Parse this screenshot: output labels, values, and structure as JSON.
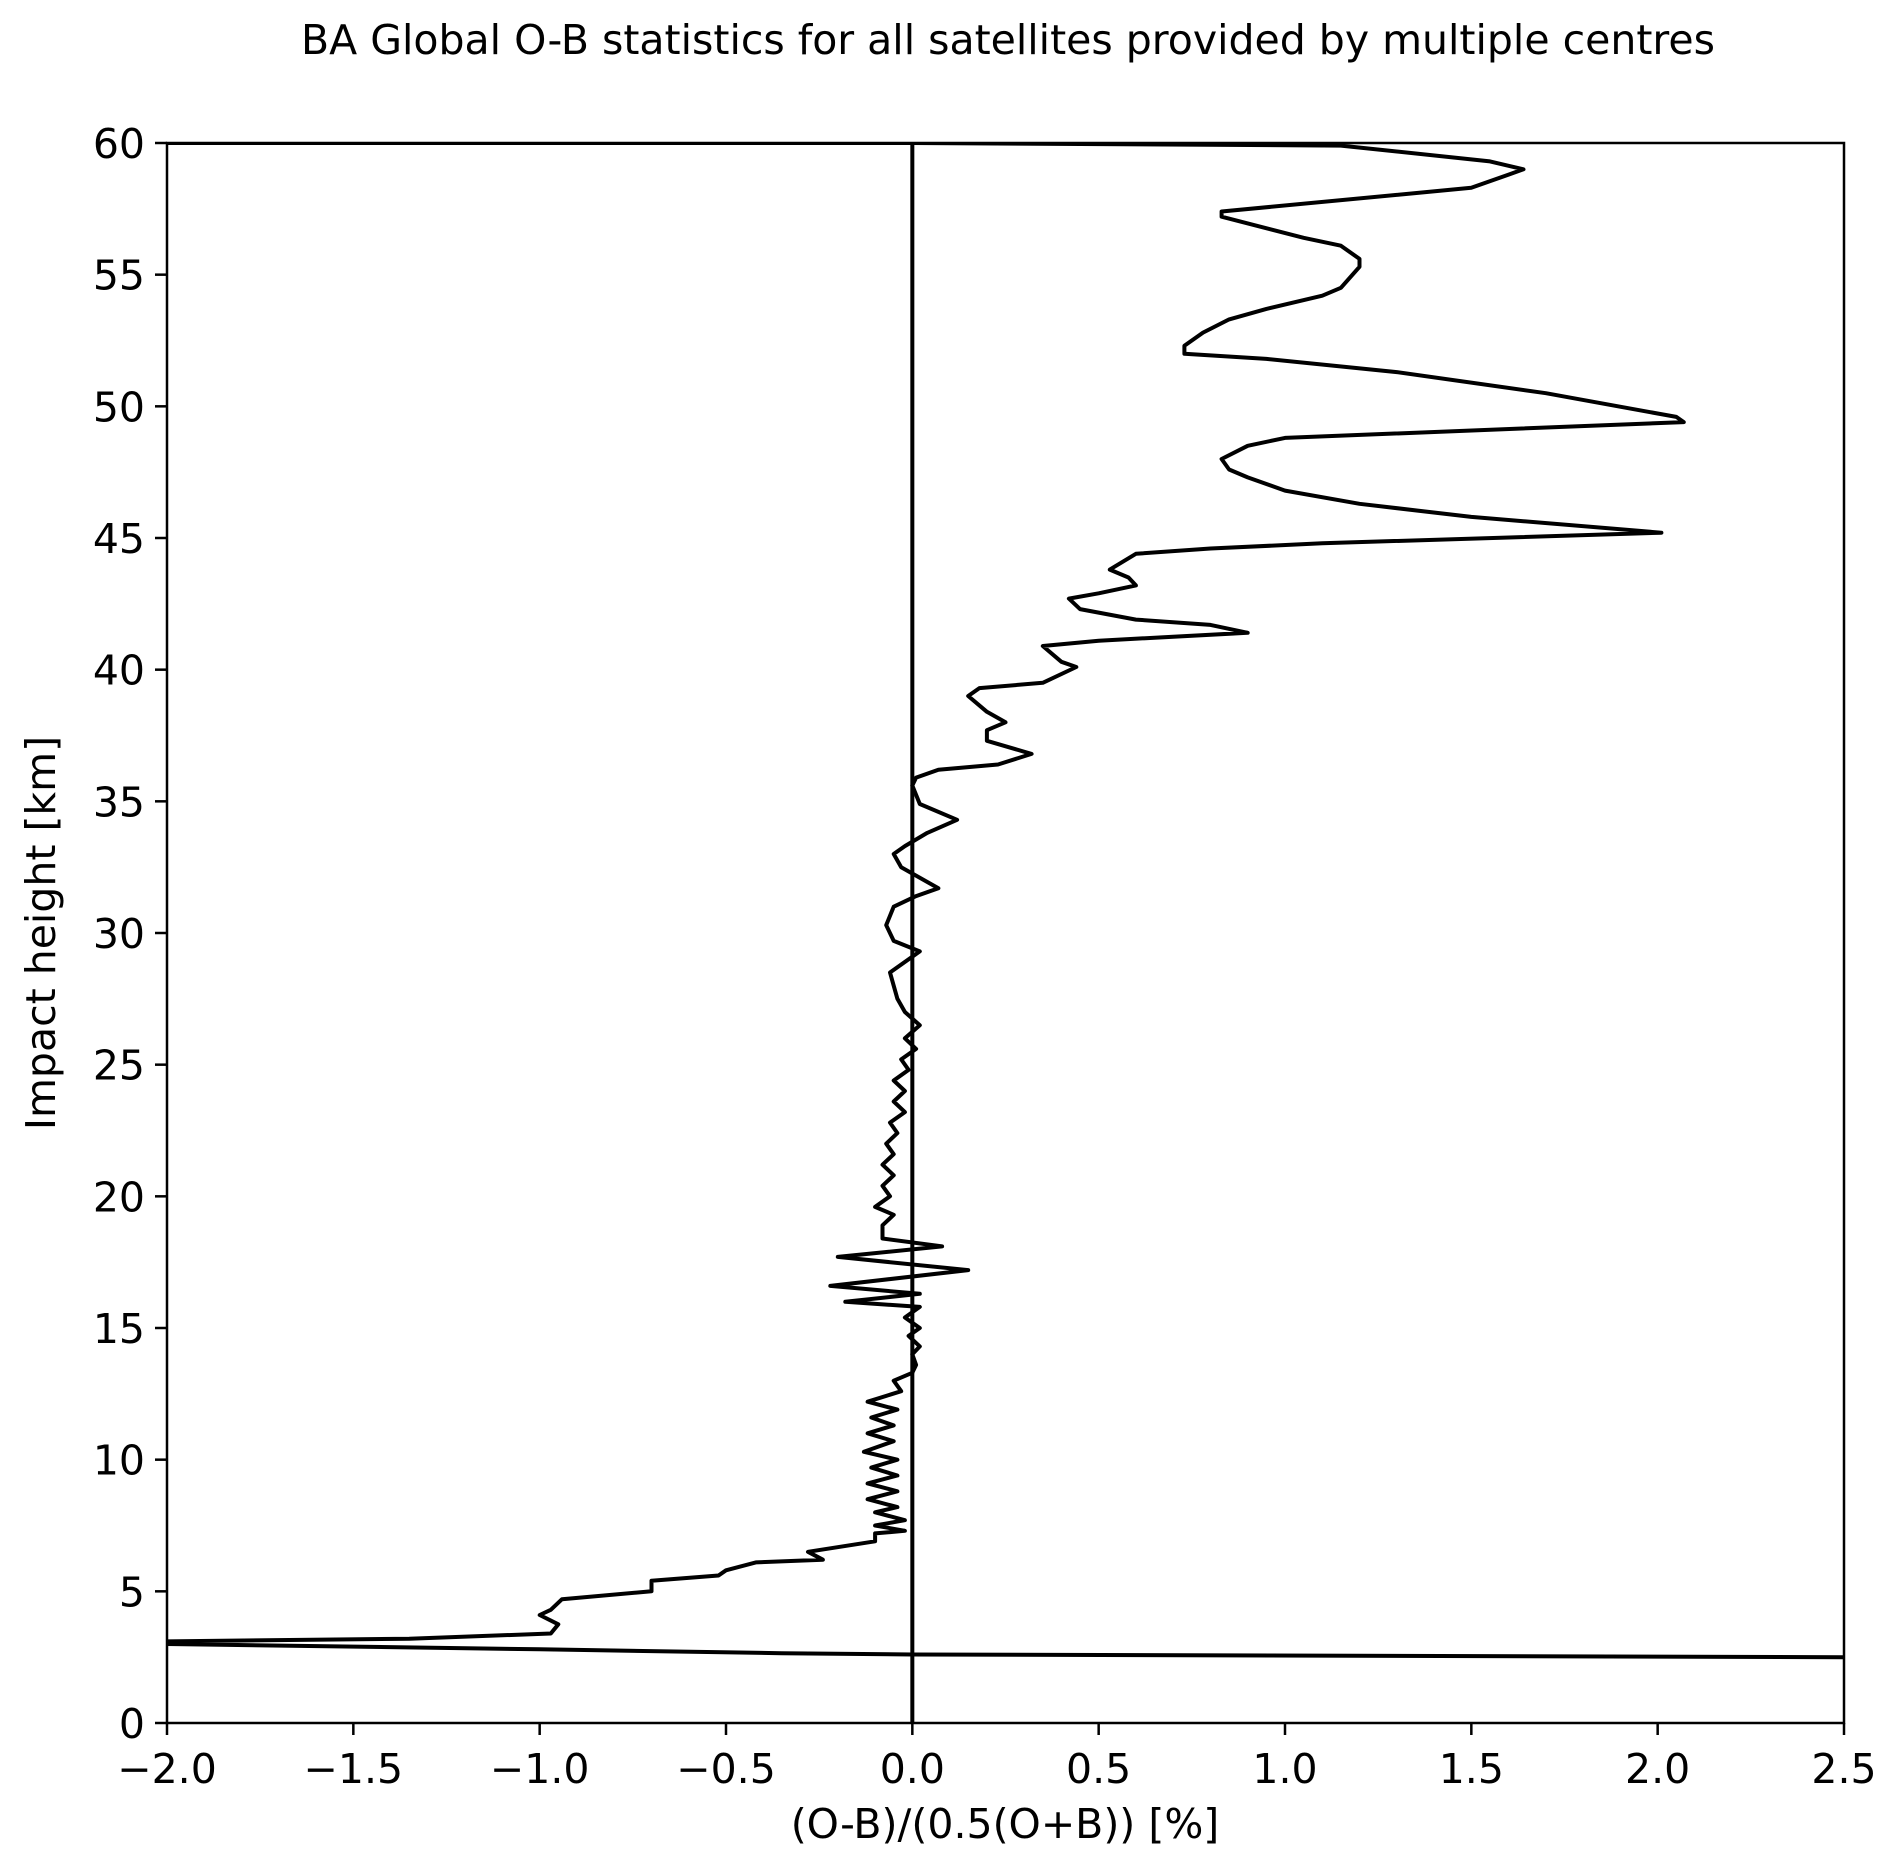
{
  "chart_data": {
    "type": "line",
    "title": "BA Global O-B statistics for all satellites provided by multiple centres",
    "xlabel": "(O-B)/(0.5(O+B)) [%]",
    "ylabel": "Impact height [km]",
    "xlim": [
      -2.0,
      2.5
    ],
    "ylim": [
      0,
      60
    ],
    "xticks": [
      -2.0,
      -1.5,
      -1.0,
      -0.5,
      0.0,
      0.5,
      1.0,
      1.5,
      2.0,
      2.5
    ],
    "xtick_labels": [
      "−2.0",
      "−1.5",
      "−1.0",
      "−0.5",
      "0.0",
      "0.5",
      "1.0",
      "1.5",
      "2.0",
      "2.5"
    ],
    "yticks": [
      0,
      5,
      10,
      15,
      20,
      25,
      30,
      35,
      40,
      45,
      50,
      55,
      60
    ],
    "ytick_labels": [
      "0",
      "5",
      "10",
      "15",
      "20",
      "25",
      "30",
      "35",
      "40",
      "45",
      "50",
      "55",
      "60"
    ],
    "grid": false,
    "reference_line_x": 0.0,
    "line_color": "#000000",
    "series": [
      {
        "points": [
          [
            2.5,
            2.5
          ],
          [
            0.0,
            2.6
          ],
          [
            -0.35,
            2.65
          ],
          [
            -1.0,
            2.8
          ],
          [
            -2.0,
            3.0
          ],
          [
            -2.0,
            3.1
          ],
          [
            -1.35,
            3.2
          ],
          [
            -0.97,
            3.4
          ],
          [
            -0.95,
            3.75
          ],
          [
            -1.0,
            4.1
          ],
          [
            -0.97,
            4.3
          ],
          [
            -0.94,
            4.7
          ],
          [
            -0.7,
            5.0
          ],
          [
            -0.7,
            5.4
          ],
          [
            -0.52,
            5.6
          ],
          [
            -0.5,
            5.8
          ],
          [
            -0.42,
            6.1
          ],
          [
            -0.24,
            6.2
          ],
          [
            -0.28,
            6.5
          ],
          [
            -0.1,
            6.9
          ],
          [
            -0.1,
            7.2
          ],
          [
            -0.02,
            7.3
          ],
          [
            -0.1,
            7.5
          ],
          [
            -0.02,
            7.7
          ],
          [
            -0.1,
            8.0
          ],
          [
            -0.04,
            8.2
          ],
          [
            -0.12,
            8.5
          ],
          [
            -0.04,
            8.8
          ],
          [
            -0.12,
            9.1
          ],
          [
            -0.04,
            9.4
          ],
          [
            -0.11,
            9.7
          ],
          [
            -0.04,
            10.0
          ],
          [
            -0.13,
            10.3
          ],
          [
            -0.05,
            10.7
          ],
          [
            -0.12,
            11.0
          ],
          [
            -0.05,
            11.3
          ],
          [
            -0.11,
            11.6
          ],
          [
            -0.04,
            11.9
          ],
          [
            -0.12,
            12.2
          ],
          [
            -0.03,
            12.6
          ],
          [
            -0.05,
            13.0
          ],
          [
            0.0,
            13.3
          ],
          [
            0.01,
            13.6
          ],
          [
            0.0,
            14.0
          ],
          [
            0.02,
            14.3
          ],
          [
            -0.01,
            14.7
          ],
          [
            0.02,
            15.0
          ],
          [
            -0.02,
            15.4
          ],
          [
            0.02,
            15.8
          ],
          [
            -0.18,
            16.0
          ],
          [
            0.02,
            16.3
          ],
          [
            -0.22,
            16.6
          ],
          [
            0.15,
            17.2
          ],
          [
            -0.2,
            17.7
          ],
          [
            0.08,
            18.1
          ],
          [
            -0.08,
            18.4
          ],
          [
            -0.08,
            18.9
          ],
          [
            -0.05,
            19.3
          ],
          [
            -0.1,
            19.6
          ],
          [
            -0.06,
            20.0
          ],
          [
            -0.08,
            20.4
          ],
          [
            -0.05,
            20.8
          ],
          [
            -0.08,
            21.2
          ],
          [
            -0.05,
            21.6
          ],
          [
            -0.07,
            22.0
          ],
          [
            -0.04,
            22.4
          ],
          [
            -0.06,
            22.8
          ],
          [
            -0.02,
            23.2
          ],
          [
            -0.05,
            23.6
          ],
          [
            -0.02,
            24.0
          ],
          [
            -0.05,
            24.4
          ],
          [
            -0.01,
            24.8
          ],
          [
            -0.03,
            25.2
          ],
          [
            0.01,
            25.6
          ],
          [
            -0.02,
            26.0
          ],
          [
            0.02,
            26.5
          ],
          [
            -0.02,
            27.0
          ],
          [
            -0.04,
            27.5
          ],
          [
            -0.05,
            28.0
          ],
          [
            -0.06,
            28.5
          ],
          [
            0.02,
            29.3
          ],
          [
            -0.05,
            29.7
          ],
          [
            -0.07,
            30.3
          ],
          [
            -0.05,
            31.0
          ],
          [
            0.01,
            31.4
          ],
          [
            0.07,
            31.7
          ],
          [
            -0.03,
            32.5
          ],
          [
            -0.05,
            33.0
          ],
          [
            -0.02,
            33.3
          ],
          [
            0.04,
            33.8
          ],
          [
            0.12,
            34.3
          ],
          [
            0.02,
            34.9
          ],
          [
            0.0,
            35.6
          ],
          [
            0.01,
            35.9
          ],
          [
            0.07,
            36.2
          ],
          [
            0.23,
            36.4
          ],
          [
            0.32,
            36.8
          ],
          [
            0.2,
            37.3
          ],
          [
            0.2,
            37.7
          ],
          [
            0.25,
            38.0
          ],
          [
            0.2,
            38.4
          ],
          [
            0.15,
            39.0
          ],
          [
            0.18,
            39.3
          ],
          [
            0.35,
            39.5
          ],
          [
            0.44,
            40.1
          ],
          [
            0.4,
            40.3
          ],
          [
            0.35,
            40.9
          ],
          [
            0.5,
            41.1
          ],
          [
            0.9,
            41.4
          ],
          [
            0.8,
            41.7
          ],
          [
            0.6,
            41.9
          ],
          [
            0.45,
            42.3
          ],
          [
            0.42,
            42.7
          ],
          [
            0.5,
            42.9
          ],
          [
            0.6,
            43.2
          ],
          [
            0.58,
            43.5
          ],
          [
            0.53,
            43.8
          ],
          [
            0.6,
            44.4
          ],
          [
            0.8,
            44.6
          ],
          [
            1.1,
            44.8
          ],
          [
            2.01,
            45.2
          ],
          [
            1.5,
            45.8
          ],
          [
            1.2,
            46.3
          ],
          [
            1.0,
            46.8
          ],
          [
            0.9,
            47.3
          ],
          [
            0.85,
            47.6
          ],
          [
            0.83,
            48.0
          ],
          [
            0.9,
            48.5
          ],
          [
            1.0,
            48.8
          ],
          [
            2.07,
            49.4
          ],
          [
            2.05,
            49.6
          ],
          [
            1.7,
            50.5
          ],
          [
            1.3,
            51.3
          ],
          [
            0.95,
            51.8
          ],
          [
            0.73,
            52.0
          ],
          [
            0.73,
            52.3
          ],
          [
            0.78,
            52.8
          ],
          [
            0.85,
            53.3
          ],
          [
            0.95,
            53.7
          ],
          [
            1.1,
            54.2
          ],
          [
            1.15,
            54.5
          ],
          [
            1.2,
            55.3
          ],
          [
            1.2,
            55.6
          ],
          [
            1.15,
            56.1
          ],
          [
            1.05,
            56.4
          ],
          [
            0.83,
            57.2
          ],
          [
            0.83,
            57.4
          ],
          [
            1.5,
            58.3
          ],
          [
            1.6,
            58.8
          ],
          [
            1.64,
            59.0
          ],
          [
            1.55,
            59.3
          ],
          [
            1.15,
            59.9
          ],
          [
            0.0,
            60.0
          ],
          [
            -2.0,
            60.0
          ]
        ]
      }
    ]
  }
}
